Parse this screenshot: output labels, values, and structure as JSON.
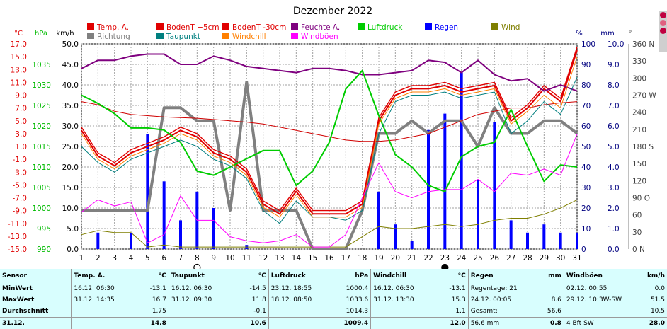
{
  "chart_data": {
    "type": "line",
    "title": "Dezember 2022",
    "categories": [
      "1",
      "2",
      "3",
      "4",
      "5",
      "6",
      "7",
      "8",
      "9",
      "10",
      "11",
      "12",
      "13",
      "14",
      "15",
      "16",
      "17",
      "18",
      "19",
      "20",
      "21",
      "22",
      "23",
      "24",
      "25",
      "26",
      "27",
      "28",
      "29",
      "30",
      "31"
    ],
    "axes": {
      "temp": {
        "unit": "°C",
        "range": [
          -15,
          17
        ],
        "ticks": [
          "17.0",
          "15.0",
          "13.0",
          "11.0",
          "9.0",
          "7.0",
          "5.0",
          "3.0",
          "1.0",
          "-1.0",
          "-3.0",
          "-5.0",
          "-7.0",
          "-9.0",
          "-11.0",
          "-13.0",
          "-15.0"
        ],
        "color": "#e00000"
      },
      "pressure": {
        "unit": "hPa",
        "range": [
          990,
          1040
        ],
        "ticks": [
          "1035",
          "1030",
          "1025",
          "1020",
          "1015",
          "1010",
          "1005",
          "1000",
          "995",
          "990"
        ],
        "color": "#00bb00"
      },
      "speed": {
        "unit": "km/h",
        "range": [
          0,
          50
        ],
        "ticks": [
          "50.0",
          "45.0",
          "40.0",
          "35.0",
          "30.0",
          "25.0",
          "20.0",
          "15.0",
          "10.0",
          "5.0",
          "0.0"
        ],
        "color": "#000000"
      },
      "humidity": {
        "unit": "%",
        "range": [
          0,
          100
        ],
        "ticks": [
          "100",
          "90",
          "80",
          "70",
          "60",
          "50",
          "40",
          "30",
          "20",
          "10",
          "0"
        ],
        "color": "#000080"
      },
      "rain": {
        "unit": "mm",
        "range": [
          0,
          10
        ],
        "ticks": [
          "10.0",
          "9.0",
          "8.0",
          "7.0",
          "6.0",
          "5.0",
          "4.0",
          "3.0",
          "2.0",
          "1.0",
          "0.0"
        ],
        "color": "#000080"
      },
      "direction": {
        "unit": "°",
        "range": [
          0,
          360
        ],
        "ticks": [
          "360 N",
          "330",
          "300",
          "270 W",
          "240",
          "210",
          "180 S",
          "150",
          "120",
          "90 O",
          "60",
          "30",
          "0 N"
        ],
        "color": "#404040"
      }
    },
    "legend": [
      {
        "label": "Temp. A.",
        "color": "#e00000"
      },
      {
        "label": "BodenT +5cm",
        "color": "#e00000"
      },
      {
        "label": "BodenT -30cm",
        "color": "#e00000"
      },
      {
        "label": "Feuchte A.",
        "color": "#7f007f"
      },
      {
        "label": "Luftdruck",
        "color": "#00cc00"
      },
      {
        "label": "Regen",
        "color": "#0000ff"
      },
      {
        "label": "Wind",
        "color": "#7f7f00"
      },
      {
        "label": "Richtung",
        "color": "#808080"
      },
      {
        "label": "Taupunkt",
        "color": "#007f7f"
      },
      {
        "label": "Windchill",
        "color": "#ff7f00"
      },
      {
        "label": "Windböen",
        "color": "#ff00ff"
      }
    ],
    "series": [
      {
        "name": "Temp. A.",
        "axis": "temp",
        "color": "#e00000",
        "width": 2,
        "values": [
          3.5,
          -0.5,
          -2.0,
          0.0,
          1.0,
          2.0,
          3.5,
          2.5,
          0.0,
          -1.0,
          -3.0,
          -8.0,
          -9.5,
          -6.0,
          -9.5,
          -9.5,
          -9.5,
          -8.0,
          5.0,
          9.0,
          10.0,
          10.0,
          10.5,
          9.5,
          10.0,
          10.5,
          5.0,
          7.0,
          10.0,
          8.0,
          16.0
        ]
      },
      {
        "name": "BodenT +5cm",
        "axis": "temp",
        "color": "#e00000",
        "width": 1.4,
        "values": [
          4.0,
          0.0,
          -1.5,
          0.5,
          1.5,
          2.5,
          4.0,
          3.0,
          0.5,
          -0.5,
          -2.5,
          -7.5,
          -9.0,
          -5.5,
          -9.0,
          -9.0,
          -9.0,
          -7.5,
          5.5,
          9.5,
          10.5,
          10.5,
          11.0,
          10.0,
          10.5,
          11.0,
          5.5,
          7.5,
          10.5,
          8.5,
          16.5
        ]
      },
      {
        "name": "BodenT -30cm",
        "axis": "temp",
        "color": "#d00000",
        "width": 1,
        "values": [
          8.0,
          7.5,
          6.5,
          6.0,
          5.8,
          5.6,
          5.5,
          5.4,
          5.2,
          5.0,
          4.8,
          4.5,
          4.0,
          3.5,
          3.0,
          2.5,
          2.0,
          1.8,
          1.8,
          2.0,
          2.5,
          3.0,
          4.0,
          5.0,
          6.0,
          6.5,
          7.0,
          7.0,
          7.5,
          7.8,
          8.0
        ]
      },
      {
        "name": "Feuchte A.",
        "axis": "humidity",
        "color": "#7f007f",
        "width": 2,
        "values": [
          88,
          92,
          92,
          94,
          95,
          95,
          90,
          90,
          94,
          92,
          89,
          88,
          87,
          86,
          88,
          88,
          87,
          85,
          85,
          86,
          87,
          92,
          91,
          86,
          92,
          85,
          82,
          83,
          77,
          80,
          77
        ]
      },
      {
        "name": "Luftdruck",
        "axis": "pressure",
        "color": "#00cc00",
        "width": 2,
        "values": [
          1027.5,
          1025.5,
          1023.0,
          1019.5,
          1019.5,
          1019.0,
          1016.0,
          1009.0,
          1008.0,
          1010.0,
          1012.0,
          1014.0,
          1014.0,
          1005.5,
          1009.0,
          1016.0,
          1029.0,
          1033.5,
          1022.5,
          1013.0,
          1010.0,
          1005.5,
          1004.0,
          1012.5,
          1015.0,
          1016.0,
          1024.0,
          1015.0,
          1006.5,
          1010.5,
          1010.0
        ]
      },
      {
        "name": "Taupunkt",
        "axis": "temp",
        "color": "#007f7f",
        "width": 1,
        "values": [
          1.0,
          -1.5,
          -3.0,
          -1.0,
          0.0,
          1.0,
          2.0,
          1.0,
          -1.0,
          -2.0,
          -4.0,
          -9.0,
          -11.0,
          -7.5,
          -10.0,
          -10.0,
          -10.5,
          -9.0,
          3.0,
          8.0,
          9.0,
          9.0,
          9.5,
          8.5,
          9.0,
          9.5,
          3.0,
          5.0,
          8.0,
          6.0,
          11.8
        ]
      },
      {
        "name": "Windchill",
        "axis": "temp",
        "color": "#ff7f00",
        "width": 1,
        "values": [
          3.0,
          -1.0,
          -2.5,
          -0.5,
          0.5,
          1.5,
          3.0,
          2.0,
          -0.5,
          -1.5,
          -3.5,
          -8.5,
          -10.0,
          -6.5,
          -10.0,
          -10.0,
          -10.0,
          -8.5,
          4.5,
          8.5,
          9.5,
          9.5,
          10.0,
          9.0,
          9.5,
          10.0,
          4.5,
          6.5,
          9.0,
          7.0,
          15.0
        ]
      },
      {
        "name": "Wind",
        "axis": "speed",
        "color": "#7f7f00",
        "width": 1,
        "values": [
          3.5,
          4.5,
          4.0,
          4.0,
          0.5,
          1.0,
          0.5,
          0.5,
          0.5,
          0.5,
          0.5,
          0.5,
          0.5,
          0.5,
          0.5,
          0.5,
          0.5,
          3.0,
          5.5,
          5.0,
          5.0,
          5.5,
          6.0,
          5.5,
          6.0,
          7.0,
          7.5,
          7.5,
          8.5,
          10.0,
          12.0
        ]
      },
      {
        "name": "Windböen",
        "axis": "speed",
        "color": "#ff00ff",
        "width": 1,
        "values": [
          9.0,
          12.0,
          10.5,
          11.5,
          1.5,
          3.5,
          13.0,
          7.0,
          7.0,
          3.0,
          2.0,
          1.5,
          2.0,
          3.5,
          0.5,
          0.5,
          3.5,
          12.5,
          21.0,
          14.0,
          12.5,
          14.0,
          14.5,
          14.5,
          17.0,
          14.0,
          18.5,
          18.0,
          19.5,
          18.0,
          28.0
        ]
      },
      {
        "name": "Richtung",
        "axis": "direction",
        "color": "#808080",
        "width": 4,
        "values": [
          68,
          68,
          68,
          68,
          68,
          248,
          248,
          225,
          225,
          68,
          293,
          68,
          68,
          68,
          0,
          0,
          0,
          68,
          203,
          203,
          225,
          203,
          225,
          225,
          180,
          248,
          203,
          203,
          225,
          225,
          203
        ]
      }
    ],
    "bars": {
      "name": "Regen",
      "axis": "rain",
      "color": "#0000ff",
      "values": [
        0.0,
        0.8,
        0.0,
        0.8,
        5.6,
        3.3,
        1.4,
        2.8,
        2.0,
        0.0,
        0.2,
        0.0,
        0.0,
        0.0,
        0.0,
        0.0,
        0.0,
        0.0,
        2.8,
        1.2,
        0.4,
        5.8,
        6.6,
        8.6,
        3.4,
        6.2,
        1.4,
        0.8,
        1.2,
        0.8,
        0.8
      ]
    },
    "moon_phases": [
      {
        "day": "8",
        "phase": "full"
      },
      {
        "day": "23",
        "phase": "new"
      }
    ]
  },
  "stats": {
    "rows": [
      {
        "label": "Sensor",
        "cells": [
          {
            "a": "Temp. A.",
            "b": "°C"
          },
          {
            "a": "Taupunkt",
            "b": "°C"
          },
          {
            "a": "Luftdruck",
            "b": "hPa"
          },
          {
            "a": "Windchill",
            "b": "°C"
          },
          {
            "a": "Regen",
            "b": "mm"
          },
          {
            "a": "Windböen",
            "b": "km/h"
          }
        ]
      },
      {
        "label": "MinWert",
        "cells": [
          {
            "a": "16.12. 06:30",
            "b": "-13.1"
          },
          {
            "a": "16.12. 06:30",
            "b": "-14.5"
          },
          {
            "a": "23.12. 18:55",
            "b": "1000.4"
          },
          {
            "a": "16.12. 06:30",
            "b": "-13.1"
          },
          {
            "a": "Regentage: 21",
            "b": ""
          },
          {
            "a": "02.12. 00:55",
            "b": "0.0"
          }
        ]
      },
      {
        "label": "MaxWert",
        "cells": [
          {
            "a": "31.12. 14:35",
            "b": "16.7"
          },
          {
            "a": "31.12. 09:30",
            "b": "11.8"
          },
          {
            "a": "18.12. 08:50",
            "b": "1033.6"
          },
          {
            "a": "31.12. 13:30",
            "b": "15.3"
          },
          {
            "a": "24.12. 00:05",
            "b": "8.6"
          },
          {
            "a": "29.12. 10:3W-SW",
            "b": "51.5"
          }
        ]
      },
      {
        "label": "Durchschnitt",
        "cells": [
          {
            "a": "",
            "b": "1.75"
          },
          {
            "a": "",
            "b": "-0.1"
          },
          {
            "a": "",
            "b": "1014.3"
          },
          {
            "a": "",
            "b": "1.1"
          },
          {
            "a": "Gesamt:",
            "b": "56.6"
          },
          {
            "a": "",
            "b": "10.5"
          }
        ]
      },
      {
        "label": "31.12.",
        "cells": [
          {
            "a": "",
            "b": "14.8"
          },
          {
            "a": "",
            "b": "10.6"
          },
          {
            "a": "",
            "b": "1009.4"
          },
          {
            "a": "",
            "b": "12.0"
          },
          {
            "a": "56.6 mm",
            "b": "0.8"
          },
          {
            "a": "4 Bft SW",
            "b": "28.0"
          }
        ]
      }
    ]
  }
}
